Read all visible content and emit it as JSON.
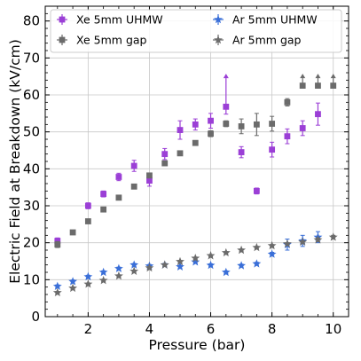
{
  "chart_data": {
    "type": "scatter",
    "xlabel": "Pressure (bar)",
    "ylabel": "Electric Field at Breakdown (kV/cm)",
    "xlim": [
      0.6,
      10.5
    ],
    "ylim": [
      0,
      84
    ],
    "xticks": [
      2,
      4,
      6,
      8,
      10
    ],
    "yticks": [
      0,
      10,
      20,
      30,
      40,
      50,
      60,
      70,
      80
    ],
    "grid": true,
    "legend": "top-left, 2 columns",
    "series": [
      {
        "name": "Xe 5mm UHMW",
        "marker": "square",
        "color": "#9b3fd6",
        "points": [
          {
            "x": 1.0,
            "y": 20.5,
            "yerr": 0.8
          },
          {
            "x": 2.0,
            "y": 30.0,
            "yerr": 0.8
          },
          {
            "x": 2.5,
            "y": 33.2,
            "yerr": 0.8
          },
          {
            "x": 3.0,
            "y": 37.8,
            "yerr": 1.0
          },
          {
            "x": 3.5,
            "y": 40.8,
            "yerr": 1.5
          },
          {
            "x": 4.0,
            "y": 36.8,
            "yerr": 1.5
          },
          {
            "x": 4.5,
            "y": 44.0,
            "yerr": 1.5
          },
          {
            "x": 5.0,
            "y": 50.5,
            "yerr": 2.5
          },
          {
            "x": 5.5,
            "y": 52.0,
            "yerr": 1.5
          },
          {
            "x": 6.0,
            "y": 53.0,
            "yerr": 2.0
          },
          {
            "x": 6.5,
            "y": 56.8,
            "yerr_low": 2.0,
            "lower_limit": true,
            "arrow_to": 65.5
          },
          {
            "x": 7.0,
            "y": 44.5,
            "yerr": 1.5
          },
          {
            "x": 7.5,
            "y": 34.0,
            "yerr": 0.8
          },
          {
            "x": 8.0,
            "y": 45.2,
            "yerr": 2.0
          },
          {
            "x": 8.5,
            "y": 48.8,
            "yerr": 2.0
          },
          {
            "x": 9.0,
            "y": 51.0,
            "yerr": 2.0
          },
          {
            "x": 9.5,
            "y": 54.8,
            "yerr": 3.0
          }
        ]
      },
      {
        "name": "Xe 5mm gap",
        "marker": "square",
        "color": "#6b6b6b",
        "points": [
          {
            "x": 1.0,
            "y": 19.5,
            "yerr": 0.8
          },
          {
            "x": 1.5,
            "y": 22.8,
            "yerr": 0.6
          },
          {
            "x": 2.0,
            "y": 25.8,
            "yerr": 0.6
          },
          {
            "x": 2.5,
            "y": 29.0,
            "yerr": 0.6
          },
          {
            "x": 3.0,
            "y": 32.2,
            "yerr": 0.6
          },
          {
            "x": 3.5,
            "y": 35.2,
            "yerr": 0.6
          },
          {
            "x": 4.0,
            "y": 38.2,
            "yerr": 0.6
          },
          {
            "x": 4.5,
            "y": 41.5,
            "yerr": 0.6
          },
          {
            "x": 5.0,
            "y": 44.2,
            "yerr": 0.6
          },
          {
            "x": 5.5,
            "y": 47.0,
            "yerr": 0.6
          },
          {
            "x": 6.0,
            "y": 49.5,
            "yerr": 0.8
          },
          {
            "x": 6.5,
            "y": 52.2,
            "yerr": 0.8
          },
          {
            "x": 7.0,
            "y": 51.5,
            "yerr": 2.0
          },
          {
            "x": 7.5,
            "y": 52.0,
            "yerr": 3.0
          },
          {
            "x": 8.0,
            "y": 52.2,
            "yerr": 2.0
          },
          {
            "x": 8.5,
            "y": 58.0,
            "yerr": 1.0
          },
          {
            "x": 9.0,
            "y": 62.5,
            "lower_limit": true,
            "arrow_to": 65.5
          },
          {
            "x": 9.5,
            "y": 62.5,
            "lower_limit": true,
            "arrow_to": 65.5
          },
          {
            "x": 10.0,
            "y": 62.5,
            "lower_limit": true,
            "arrow_to": 65.5
          }
        ]
      },
      {
        "name": "Ar 5mm UHMW",
        "marker": "star",
        "color": "#3a6fd8",
        "points": [
          {
            "x": 1.0,
            "y": 8.2,
            "yerr": 0.4
          },
          {
            "x": 1.5,
            "y": 9.5,
            "yerr": 0.4
          },
          {
            "x": 2.0,
            "y": 10.8,
            "yerr": 0.4
          },
          {
            "x": 2.5,
            "y": 12.0,
            "yerr": 0.4
          },
          {
            "x": 3.0,
            "y": 13.0,
            "yerr": 0.4
          },
          {
            "x": 3.5,
            "y": 14.0,
            "yerr": 0.4
          },
          {
            "x": 4.0,
            "y": 13.7,
            "yerr": 0.4
          },
          {
            "x": 4.5,
            "y": 14.0,
            "yerr": 0.4
          },
          {
            "x": 5.0,
            "y": 13.5,
            "yerr": 0.4
          },
          {
            "x": 5.5,
            "y": 14.8,
            "yerr": 0.4
          },
          {
            "x": 6.0,
            "y": 13.9,
            "yerr": 0.4
          },
          {
            "x": 6.5,
            "y": 12.0,
            "yerr": 0.4
          },
          {
            "x": 7.0,
            "y": 13.8,
            "yerr": 0.4
          },
          {
            "x": 7.5,
            "y": 14.3,
            "yerr": 0.4
          },
          {
            "x": 8.0,
            "y": 16.9,
            "yerr": 0.5
          },
          {
            "x": 8.5,
            "y": 19.5,
            "yerr": 1.5
          },
          {
            "x": 9.0,
            "y": 20.5,
            "yerr": 1.5
          },
          {
            "x": 9.5,
            "y": 21.5,
            "yerr": 1.5
          }
        ]
      },
      {
        "name": "Ar 5mm gap",
        "marker": "star",
        "color": "#6b6b6b",
        "points": [
          {
            "x": 1.0,
            "y": 6.5,
            "yerr": 0.3
          },
          {
            "x": 1.5,
            "y": 7.7,
            "yerr": 0.3
          },
          {
            "x": 2.0,
            "y": 8.8,
            "yerr": 0.3
          },
          {
            "x": 2.5,
            "y": 9.8,
            "yerr": 0.3
          },
          {
            "x": 3.0,
            "y": 11.0,
            "yerr": 0.3
          },
          {
            "x": 3.5,
            "y": 12.3,
            "yerr": 0.3
          },
          {
            "x": 4.0,
            "y": 13.2,
            "yerr": 0.3
          },
          {
            "x": 4.5,
            "y": 14.0,
            "yerr": 0.3
          },
          {
            "x": 5.0,
            "y": 14.9,
            "yerr": 0.3
          },
          {
            "x": 5.5,
            "y": 15.8,
            "yerr": 0.3
          },
          {
            "x": 6.0,
            "y": 16.5,
            "yerr": 0.3
          },
          {
            "x": 6.5,
            "y": 17.3,
            "yerr": 0.3
          },
          {
            "x": 7.0,
            "y": 18.0,
            "yerr": 0.3
          },
          {
            "x": 7.5,
            "y": 18.7,
            "yerr": 0.3
          },
          {
            "x": 8.0,
            "y": 19.2,
            "yerr": 0.3
          },
          {
            "x": 8.5,
            "y": 19.7,
            "yerr": 0.3
          },
          {
            "x": 9.0,
            "y": 20.2,
            "yerr": 0.3
          },
          {
            "x": 9.5,
            "y": 20.8,
            "yerr": 0.5
          },
          {
            "x": 10.0,
            "y": 21.5,
            "yerr": 0.5
          }
        ]
      }
    ]
  }
}
